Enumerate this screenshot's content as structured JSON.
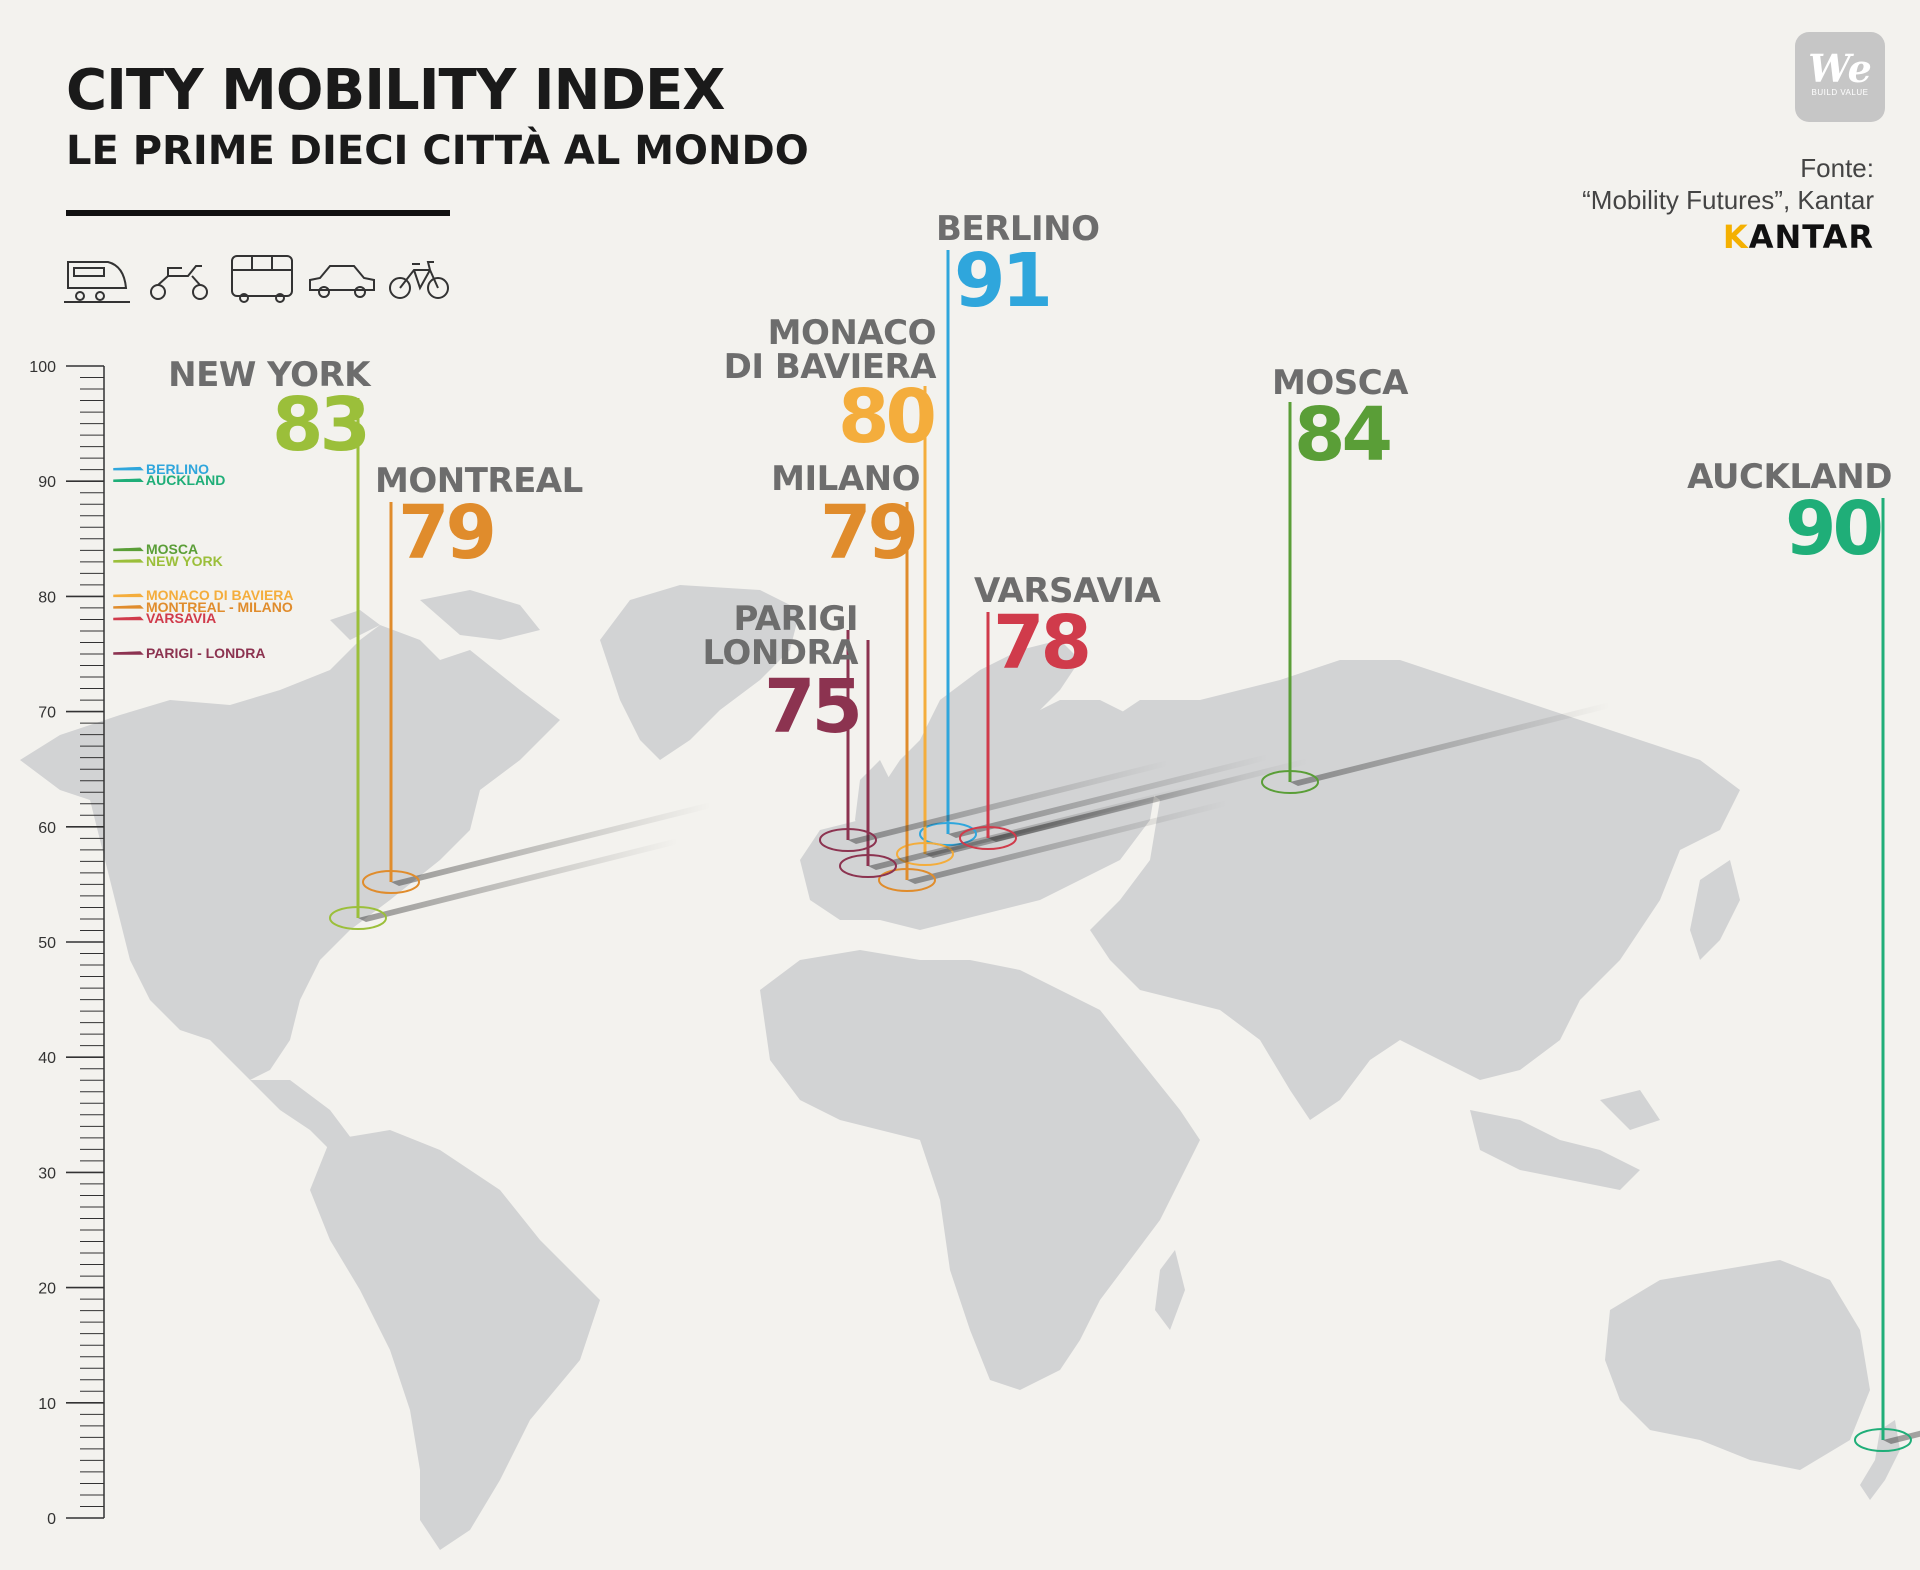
{
  "header": {
    "title": "CITY MOBILITY INDEX",
    "subtitle": "LE PRIME DIECI CITTÀ AL MONDO",
    "source_line1": "Fonte:",
    "source_line2": "“Mobility Futures”, Kantar",
    "kantar_logo_k": "K",
    "kantar_logo_rest": "ANTAR"
  },
  "logo": {
    "main": "We",
    "tagline": "BUILD VALUE"
  },
  "transport_icons": [
    "train-icon",
    "scooter-icon",
    "bus-icon",
    "car-icon",
    "bicycle-icon"
  ],
  "scale": {
    "min": 0,
    "max": 100,
    "tick_labels": [
      "100",
      "90",
      "80",
      "70",
      "60",
      "50",
      "40",
      "30",
      "20",
      "10",
      "0"
    ]
  },
  "legend": [
    {
      "label": "BERLINO",
      "value": 91,
      "color": "#2fa6dc"
    },
    {
      "label": "AUCKLAND",
      "value": 90,
      "color": "#1fae78"
    },
    {
      "label": "MOSCA",
      "value": 84,
      "color": "#5a9e37"
    },
    {
      "label": "NEW YORK",
      "value": 83,
      "color": "#9bbf3a"
    },
    {
      "label": "MONACO DI BAVIERA",
      "value": 80,
      "color": "#f4ad3c"
    },
    {
      "label": "MONTREAL - MILANO",
      "value": 79,
      "color": "#e08c2c"
    },
    {
      "label": "VARSAVIA",
      "value": 78,
      "color": "#d03b4b"
    },
    {
      "label": "PARIGI - LONDRA",
      "value": 75,
      "color": "#8c3350"
    }
  ],
  "cities": [
    {
      "id": "new-york",
      "name": "NEW YORK",
      "score": "83",
      "color": "#9bbf3a"
    },
    {
      "id": "montreal",
      "name": "MONTREAL",
      "score": "79",
      "color": "#e08c2c"
    },
    {
      "id": "berlino",
      "name": "BERLINO",
      "score": "91",
      "color": "#2fa6dc"
    },
    {
      "id": "monaco",
      "name": "MONACO\nDI BAVIERA",
      "score": "80",
      "color": "#f4ad3c"
    },
    {
      "id": "milano",
      "name": "MILANO",
      "score": "79",
      "color": "#e08c2c"
    },
    {
      "id": "parigi-londra",
      "name": "PARIGI\nLONDRA",
      "score": "75",
      "color": "#8c3350"
    },
    {
      "id": "varsavia",
      "name": "VARSAVIA",
      "score": "78",
      "color": "#d03b4b"
    },
    {
      "id": "mosca",
      "name": "MOSCA",
      "score": "84",
      "color": "#5a9e37"
    },
    {
      "id": "auckland",
      "name": "AUCKLAND",
      "score": "90",
      "color": "#1fae78"
    }
  ]
}
